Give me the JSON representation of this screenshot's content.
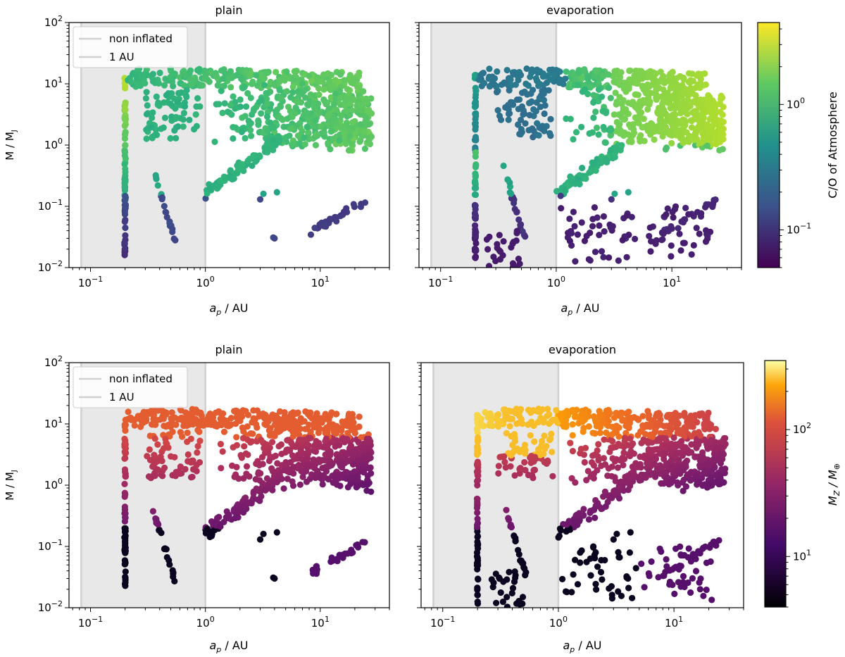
{
  "chart_data": {
    "type": "scatter",
    "x_scale": "log",
    "y_scale": "log",
    "xlim": [
      0.065,
      40
    ],
    "ylim": [
      0.01,
      100
    ],
    "x_ticks": [
      {
        "value": 0.1,
        "base": "10",
        "exp": "−1"
      },
      {
        "value": 1,
        "base": "10",
        "exp": "0"
      },
      {
        "value": 10,
        "base": "10",
        "exp": "1"
      }
    ],
    "y_ticks": [
      {
        "value": 0.01,
        "base": "10",
        "exp": "−2"
      },
      {
        "value": 0.1,
        "base": "10",
        "exp": "−1"
      },
      {
        "value": 1,
        "base": "10",
        "exp": "0"
      },
      {
        "value": 10,
        "base": "10",
        "exp": "1"
      },
      {
        "value": 100,
        "base": "10",
        "exp": "2"
      }
    ],
    "xlabel_main": "a",
    "xlabel_sub": "p",
    "xlabel_unit": " / AU",
    "ylabel_main": "M / M",
    "ylabel_sub": "J",
    "shaded_region": {
      "x_from": 0.083,
      "x_to": 1.0
    },
    "legend": [
      "non inflated",
      "1 AU"
    ],
    "panels": [
      {
        "row": 0,
        "col": 0,
        "title": "plain",
        "colorby": "co",
        "seed": 11,
        "evap": false
      },
      {
        "row": 0,
        "col": 1,
        "title": "evaporation",
        "colorby": "co",
        "seed": 23,
        "evap": true
      },
      {
        "row": 1,
        "col": 0,
        "title": "plain",
        "colorby": "mz",
        "seed": 37,
        "evap": false
      },
      {
        "row": 1,
        "col": 1,
        "title": "evaporation",
        "colorby": "mz",
        "seed": 53,
        "evap": true
      }
    ],
    "colorbars": [
      {
        "row": 0,
        "colormap": "viridis",
        "range": [
          0.05,
          4.5
        ],
        "ticks": [
          {
            "value": 0.1,
            "base": "10",
            "exp": "−1"
          },
          {
            "value": 1,
            "base": "10",
            "exp": "0"
          }
        ],
        "label": "C/O of Atmosphere"
      },
      {
        "row": 1,
        "colormap": "inferno",
        "range": [
          4,
          350
        ],
        "ticks": [
          {
            "value": 10,
            "base": "10",
            "exp": "1"
          },
          {
            "value": 100,
            "base": "10",
            "exp": "2"
          }
        ],
        "label_main": "M",
        "label_sub": "Z",
        "label_mid": " / M",
        "label_sub2": "⊕"
      }
    ]
  }
}
